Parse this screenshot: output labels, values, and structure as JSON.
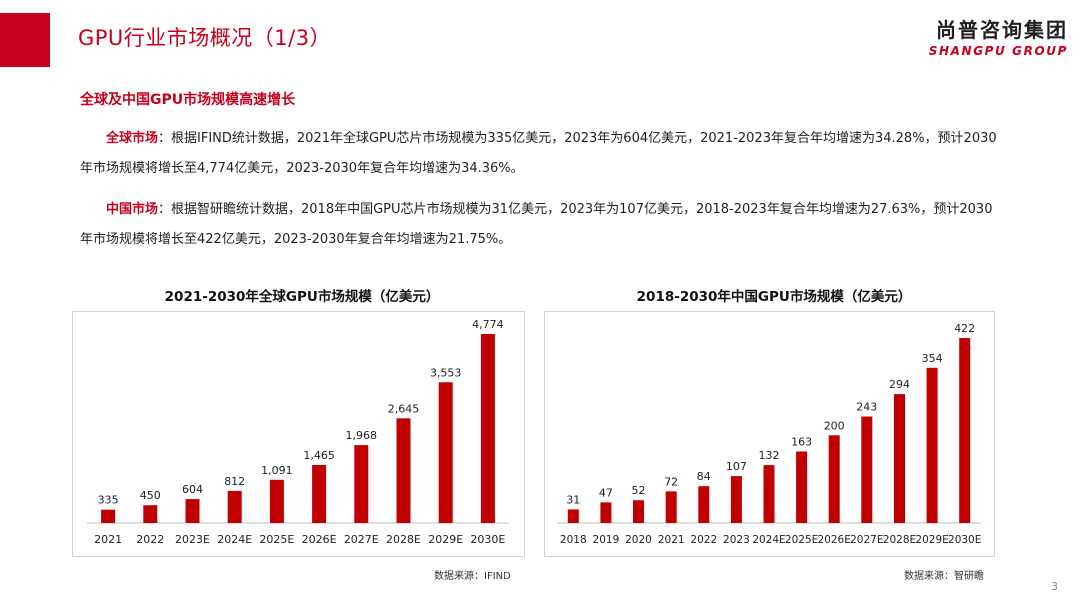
{
  "header": {
    "title": "GPU行业市场概况（1/3）",
    "logo_cn": "尚普咨询集团",
    "logo_en": "SHANGPU GROUP"
  },
  "section_title": "全球及中国GPU市场规模高速增长",
  "paragraphs": [
    {
      "label": "全球市场",
      "text": "：根据IFIND统计数据，2021年全球GPU芯片市场规模为335亿美元，2023年为604亿美元，2021-2023年复合年均增速为34.28%，预计2030年市场规模将增长至4,774亿美元，2023-2030年复合年均增速为34.36%。"
    },
    {
      "label": "中国市场",
      "text": "：根据智研瞻统计数据，2018年中国GPU芯片市场规模为31亿美元，2023年为107亿美元，2018-2023年复合年均增速为27.63%，预计2030年市场规模将增长至422亿美元，2023-2030年复合年均增速为21.75%。"
    }
  ],
  "sources": [
    "数据来源：IFIND",
    "数据来源：智研瞻"
  ],
  "page_number": "3",
  "colors": {
    "accent": "#c8001e",
    "bar": "#c00000"
  },
  "chart_data": [
    {
      "type": "bar",
      "title": "2021-2030年全球GPU市场规模（亿美元）",
      "categories": [
        "2021",
        "2022",
        "2023E",
        "2024E",
        "2025E",
        "2026E",
        "2027E",
        "2028E",
        "2029E",
        "2030E"
      ],
      "values": [
        335,
        450,
        604,
        812,
        1091,
        1465,
        1968,
        2645,
        3553,
        4774
      ],
      "value_labels": [
        "335",
        "450",
        "604",
        "812",
        "1,091",
        "1,465",
        "1,968",
        "2,645",
        "3,553",
        "4,774"
      ],
      "xlabel": "",
      "ylabel": "",
      "ylim": [
        0,
        4774
      ],
      "grid": false
    },
    {
      "type": "bar",
      "title": "2018-2030年中国GPU市场规模（亿美元）",
      "categories": [
        "2018",
        "2019",
        "2020",
        "2021",
        "2022",
        "2023",
        "2024E",
        "2025E",
        "2026E",
        "2027E",
        "2028E",
        "2029E",
        "2030E"
      ],
      "values": [
        31,
        47,
        52,
        72,
        84,
        107,
        132,
        163,
        200,
        243,
        294,
        354,
        422
      ],
      "value_labels": [
        "31",
        "47",
        "52",
        "72",
        "84",
        "107",
        "132",
        "163",
        "200",
        "243",
        "294",
        "354",
        "422"
      ],
      "xlabel": "",
      "ylabel": "",
      "ylim": [
        0,
        422
      ],
      "grid": false
    }
  ]
}
